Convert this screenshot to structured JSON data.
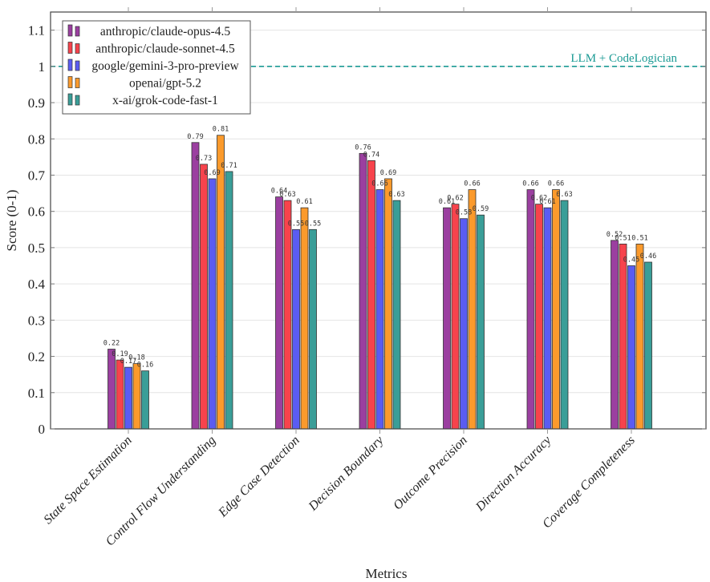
{
  "chart_data": {
    "type": "bar",
    "title": "",
    "xlabel": "Metrics",
    "ylabel": "Score (0-1)",
    "ylim": [
      0,
      1.15
    ],
    "yticks": [
      "0",
      "0.1",
      "0.2",
      "0.3",
      "0.4",
      "0.5",
      "0.6",
      "0.7",
      "0.8",
      "0.9",
      "1",
      "1.1"
    ],
    "grid": "horizontal",
    "legend_position": "top-left",
    "categories": [
      "State Space Estimation",
      "Control Flow Understanding",
      "Edge Case Detection",
      "Decision Boundary",
      "Outcome Precision",
      "Direction Accuracy",
      "Coverage Completeness"
    ],
    "series": [
      {
        "name": "anthropic/claude-opus-4.5",
        "color": "#9b3fa0",
        "values": [
          0.22,
          0.79,
          0.64,
          0.76,
          0.61,
          0.66,
          0.52
        ]
      },
      {
        "name": "anthropic/claude-sonnet-4.5",
        "color": "#f7434c",
        "values": [
          0.19,
          0.73,
          0.63,
          0.74,
          0.62,
          0.62,
          0.51
        ]
      },
      {
        "name": "google/gemini-3-pro-preview",
        "color": "#5a5cf2",
        "values": [
          0.17,
          0.69,
          0.55,
          0.66,
          0.58,
          0.61,
          0.45
        ]
      },
      {
        "name": "openai/gpt-5.2",
        "color": "#fb9a2c",
        "values": [
          0.18,
          0.81,
          0.61,
          0.69,
          0.66,
          0.66,
          0.51
        ]
      },
      {
        "name": "x-ai/grok-code-fast-1",
        "color": "#3a9e98",
        "values": [
          0.16,
          0.71,
          0.55,
          0.63,
          0.59,
          0.63,
          0.46
        ]
      }
    ],
    "reference_line": {
      "y": 1.0,
      "label": "LLM + CodeLogician",
      "color": "#1a9a94",
      "style": "dashed"
    }
  }
}
